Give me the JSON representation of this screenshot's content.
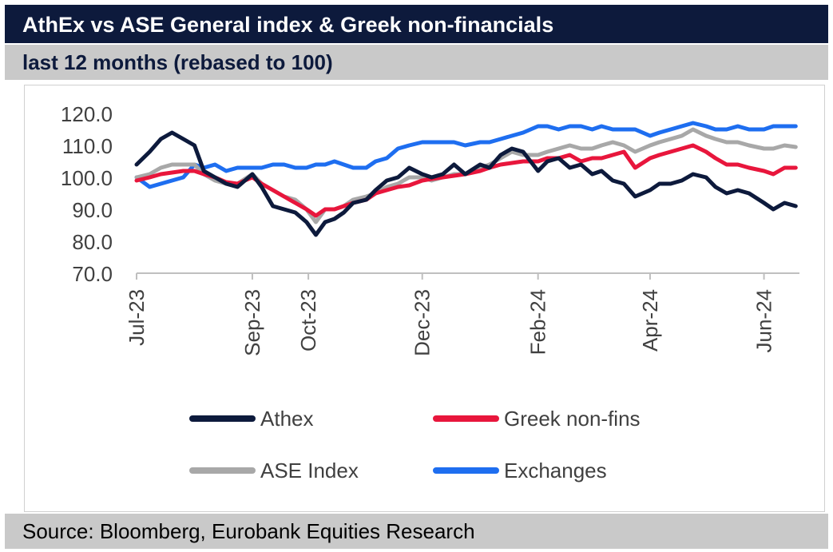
{
  "header": {
    "title": "AthEx vs ASE General index & Greek non-financials",
    "subtitle": "last 12 months (rebased to 100)"
  },
  "footer": {
    "source": "Source: Bloomberg, Eurobank Equities Research"
  },
  "colors": {
    "athex": "#0d1a3c",
    "greek_non_fins": "#e8163c",
    "ase_index": "#a8a8a8",
    "exchanges": "#1e6ef0"
  },
  "chart_data": {
    "type": "line",
    "title": "AthEx vs ASE General index & Greek non-financials",
    "subtitle": "last 12 months (rebased to 100)",
    "xlabel": "",
    "ylabel": "",
    "ylim": [
      70,
      120
    ],
    "y_ticks": [
      "120.0",
      "110.0",
      "100.0",
      "90.0",
      "80.0",
      "70.0"
    ],
    "x_ticks": [
      "Jul-23",
      "Sep-23",
      "Oct-23",
      "Dec-23",
      "Feb-24",
      "Apr-24",
      "Jun-24"
    ],
    "x_tick_dates": [
      "2023-07-01",
      "2023-09-01",
      "2023-10-01",
      "2023-12-01",
      "2024-02-01",
      "2024-04-01",
      "2024-06-01"
    ],
    "grid": false,
    "legend_position": "bottom",
    "series": [
      {
        "name": "Athex",
        "color": "#0d1a3c",
        "points": [
          [
            "2023-07-01",
            104
          ],
          [
            "2023-07-08",
            108
          ],
          [
            "2023-07-14",
            112
          ],
          [
            "2023-07-20",
            114
          ],
          [
            "2023-07-26",
            112
          ],
          [
            "2023-08-01",
            110
          ],
          [
            "2023-08-06",
            102
          ],
          [
            "2023-08-12",
            100
          ],
          [
            "2023-08-18",
            98
          ],
          [
            "2023-08-24",
            97
          ],
          [
            "2023-09-01",
            101
          ],
          [
            "2023-09-06",
            97
          ],
          [
            "2023-09-12",
            91
          ],
          [
            "2023-09-18",
            90
          ],
          [
            "2023-09-24",
            89
          ],
          [
            "2023-09-30",
            86
          ],
          [
            "2023-10-05",
            82
          ],
          [
            "2023-10-10",
            86
          ],
          [
            "2023-10-15",
            87
          ],
          [
            "2023-10-20",
            89
          ],
          [
            "2023-10-25",
            92
          ],
          [
            "2023-11-01",
            93
          ],
          [
            "2023-11-06",
            96
          ],
          [
            "2023-11-12",
            99
          ],
          [
            "2023-11-18",
            100
          ],
          [
            "2023-11-24",
            103
          ],
          [
            "2023-12-01",
            101
          ],
          [
            "2023-12-06",
            100
          ],
          [
            "2023-12-12",
            101
          ],
          [
            "2023-12-18",
            104
          ],
          [
            "2023-12-24",
            101
          ],
          [
            "2024-01-01",
            104
          ],
          [
            "2024-01-06",
            103
          ],
          [
            "2024-01-12",
            107
          ],
          [
            "2024-01-18",
            109
          ],
          [
            "2024-01-24",
            108
          ],
          [
            "2024-02-01",
            102
          ],
          [
            "2024-02-06",
            105
          ],
          [
            "2024-02-12",
            106
          ],
          [
            "2024-02-18",
            103
          ],
          [
            "2024-02-24",
            104
          ],
          [
            "2024-03-01",
            101
          ],
          [
            "2024-03-06",
            102
          ],
          [
            "2024-03-12",
            99
          ],
          [
            "2024-03-18",
            98
          ],
          [
            "2024-03-24",
            94
          ],
          [
            "2024-04-01",
            96
          ],
          [
            "2024-04-06",
            98
          ],
          [
            "2024-04-12",
            98
          ],
          [
            "2024-04-18",
            99
          ],
          [
            "2024-04-24",
            101
          ],
          [
            "2024-05-01",
            100
          ],
          [
            "2024-05-06",
            97
          ],
          [
            "2024-05-12",
            95
          ],
          [
            "2024-05-18",
            96
          ],
          [
            "2024-05-24",
            95
          ],
          [
            "2024-06-01",
            92
          ],
          [
            "2024-06-06",
            90
          ],
          [
            "2024-06-12",
            92
          ],
          [
            "2024-06-18",
            91
          ]
        ]
      },
      {
        "name": "Greek non-fins",
        "color": "#e8163c",
        "points": [
          [
            "2023-07-01",
            99
          ],
          [
            "2023-07-08",
            100
          ],
          [
            "2023-07-14",
            101
          ],
          [
            "2023-07-20",
            101.5
          ],
          [
            "2023-07-26",
            102
          ],
          [
            "2023-08-01",
            102
          ],
          [
            "2023-08-06",
            101
          ],
          [
            "2023-08-12",
            100
          ],
          [
            "2023-08-18",
            98.5
          ],
          [
            "2023-08-24",
            98
          ],
          [
            "2023-09-01",
            100
          ],
          [
            "2023-09-06",
            98
          ],
          [
            "2023-09-12",
            96
          ],
          [
            "2023-09-18",
            94
          ],
          [
            "2023-09-24",
            92
          ],
          [
            "2023-09-30",
            90
          ],
          [
            "2023-10-05",
            88
          ],
          [
            "2023-10-10",
            90
          ],
          [
            "2023-10-15",
            90
          ],
          [
            "2023-10-20",
            91
          ],
          [
            "2023-10-25",
            92
          ],
          [
            "2023-11-01",
            93
          ],
          [
            "2023-11-06",
            95
          ],
          [
            "2023-11-12",
            96
          ],
          [
            "2023-11-18",
            97
          ],
          [
            "2023-11-24",
            97.5
          ],
          [
            "2023-12-01",
            99
          ],
          [
            "2023-12-06",
            99.5
          ],
          [
            "2023-12-12",
            100
          ],
          [
            "2023-12-18",
            100.5
          ],
          [
            "2023-12-24",
            101
          ],
          [
            "2024-01-01",
            102
          ],
          [
            "2024-01-06",
            103
          ],
          [
            "2024-01-12",
            104
          ],
          [
            "2024-01-18",
            104.5
          ],
          [
            "2024-01-24",
            105
          ],
          [
            "2024-02-01",
            105
          ],
          [
            "2024-02-06",
            106
          ],
          [
            "2024-02-12",
            106
          ],
          [
            "2024-02-18",
            107
          ],
          [
            "2024-02-24",
            105
          ],
          [
            "2024-03-01",
            106
          ],
          [
            "2024-03-06",
            106
          ],
          [
            "2024-03-12",
            107
          ],
          [
            "2024-03-18",
            108
          ],
          [
            "2024-03-24",
            103
          ],
          [
            "2024-04-01",
            106
          ],
          [
            "2024-04-06",
            107
          ],
          [
            "2024-04-12",
            108
          ],
          [
            "2024-04-18",
            109
          ],
          [
            "2024-04-24",
            110
          ],
          [
            "2024-05-01",
            108
          ],
          [
            "2024-05-06",
            106
          ],
          [
            "2024-05-12",
            104
          ],
          [
            "2024-05-18",
            104
          ],
          [
            "2024-05-24",
            103
          ],
          [
            "2024-06-01",
            102
          ],
          [
            "2024-06-06",
            101
          ],
          [
            "2024-06-12",
            103
          ],
          [
            "2024-06-18",
            103
          ]
        ]
      },
      {
        "name": "ASE Index",
        "color": "#a8a8a8",
        "points": [
          [
            "2023-07-01",
            100
          ],
          [
            "2023-07-08",
            101
          ],
          [
            "2023-07-14",
            103
          ],
          [
            "2023-07-20",
            104
          ],
          [
            "2023-07-26",
            104
          ],
          [
            "2023-08-01",
            104
          ],
          [
            "2023-08-06",
            101
          ],
          [
            "2023-08-12",
            99
          ],
          [
            "2023-08-18",
            98
          ],
          [
            "2023-08-24",
            98
          ],
          [
            "2023-09-01",
            101
          ],
          [
            "2023-09-06",
            98
          ],
          [
            "2023-09-12",
            96
          ],
          [
            "2023-09-18",
            94
          ],
          [
            "2023-09-24",
            93
          ],
          [
            "2023-09-30",
            90
          ],
          [
            "2023-10-05",
            86
          ],
          [
            "2023-10-10",
            90
          ],
          [
            "2023-10-15",
            90
          ],
          [
            "2023-10-20",
            91
          ],
          [
            "2023-10-25",
            93
          ],
          [
            "2023-11-01",
            94
          ],
          [
            "2023-11-06",
            95
          ],
          [
            "2023-11-12",
            97
          ],
          [
            "2023-11-18",
            98
          ],
          [
            "2023-11-24",
            100
          ],
          [
            "2023-12-01",
            100
          ],
          [
            "2023-12-06",
            99
          ],
          [
            "2023-12-12",
            100
          ],
          [
            "2023-12-18",
            101
          ],
          [
            "2023-12-24",
            101
          ],
          [
            "2024-01-01",
            103
          ],
          [
            "2024-01-06",
            104
          ],
          [
            "2024-01-12",
            106
          ],
          [
            "2024-01-18",
            108
          ],
          [
            "2024-01-24",
            107
          ],
          [
            "2024-02-01",
            107
          ],
          [
            "2024-02-06",
            108
          ],
          [
            "2024-02-12",
            109
          ],
          [
            "2024-02-18",
            110
          ],
          [
            "2024-02-24",
            109
          ],
          [
            "2024-03-01",
            109
          ],
          [
            "2024-03-06",
            110
          ],
          [
            "2024-03-12",
            111
          ],
          [
            "2024-03-18",
            110
          ],
          [
            "2024-03-24",
            108
          ],
          [
            "2024-04-01",
            110
          ],
          [
            "2024-04-06",
            111
          ],
          [
            "2024-04-12",
            112
          ],
          [
            "2024-04-18",
            113
          ],
          [
            "2024-04-24",
            115
          ],
          [
            "2024-05-01",
            113
          ],
          [
            "2024-05-06",
            112
          ],
          [
            "2024-05-12",
            111
          ],
          [
            "2024-05-18",
            111
          ],
          [
            "2024-05-24",
            110
          ],
          [
            "2024-06-01",
            109
          ],
          [
            "2024-06-06",
            109
          ],
          [
            "2024-06-12",
            110
          ],
          [
            "2024-06-18",
            109.5
          ]
        ]
      },
      {
        "name": "Exchanges",
        "color": "#1e6ef0",
        "points": [
          [
            "2023-07-01",
            100
          ],
          [
            "2023-07-08",
            97
          ],
          [
            "2023-07-14",
            98
          ],
          [
            "2023-07-20",
            99
          ],
          [
            "2023-07-26",
            100
          ],
          [
            "2023-08-01",
            104
          ],
          [
            "2023-08-06",
            103
          ],
          [
            "2023-08-12",
            104
          ],
          [
            "2023-08-18",
            102
          ],
          [
            "2023-08-24",
            103
          ],
          [
            "2023-09-01",
            103
          ],
          [
            "2023-09-06",
            103
          ],
          [
            "2023-09-12",
            104
          ],
          [
            "2023-09-18",
            104
          ],
          [
            "2023-09-24",
            103
          ],
          [
            "2023-09-30",
            103
          ],
          [
            "2023-10-05",
            104
          ],
          [
            "2023-10-10",
            104
          ],
          [
            "2023-10-15",
            105
          ],
          [
            "2023-10-20",
            104
          ],
          [
            "2023-10-25",
            103
          ],
          [
            "2023-11-01",
            103
          ],
          [
            "2023-11-06",
            105
          ],
          [
            "2023-11-12",
            106
          ],
          [
            "2023-11-18",
            109
          ],
          [
            "2023-11-24",
            110
          ],
          [
            "2023-12-01",
            111
          ],
          [
            "2023-12-06",
            111
          ],
          [
            "2023-12-12",
            111
          ],
          [
            "2023-12-18",
            111
          ],
          [
            "2023-12-24",
            110
          ],
          [
            "2024-01-01",
            111
          ],
          [
            "2024-01-06",
            111
          ],
          [
            "2024-01-12",
            112
          ],
          [
            "2024-01-18",
            113
          ],
          [
            "2024-01-24",
            114
          ],
          [
            "2024-02-01",
            116
          ],
          [
            "2024-02-06",
            116
          ],
          [
            "2024-02-12",
            115
          ],
          [
            "2024-02-18",
            116
          ],
          [
            "2024-02-24",
            116
          ],
          [
            "2024-03-01",
            115
          ],
          [
            "2024-03-06",
            116
          ],
          [
            "2024-03-12",
            115
          ],
          [
            "2024-03-18",
            115
          ],
          [
            "2024-03-24",
            115
          ],
          [
            "2024-04-01",
            113
          ],
          [
            "2024-04-06",
            114
          ],
          [
            "2024-04-12",
            115
          ],
          [
            "2024-04-18",
            116
          ],
          [
            "2024-04-24",
            117
          ],
          [
            "2024-05-01",
            116
          ],
          [
            "2024-05-06",
            115
          ],
          [
            "2024-05-12",
            115
          ],
          [
            "2024-05-18",
            116
          ],
          [
            "2024-05-24",
            115
          ],
          [
            "2024-06-01",
            115
          ],
          [
            "2024-06-06",
            116
          ],
          [
            "2024-06-12",
            116
          ],
          [
            "2024-06-18",
            116
          ]
        ]
      }
    ]
  }
}
